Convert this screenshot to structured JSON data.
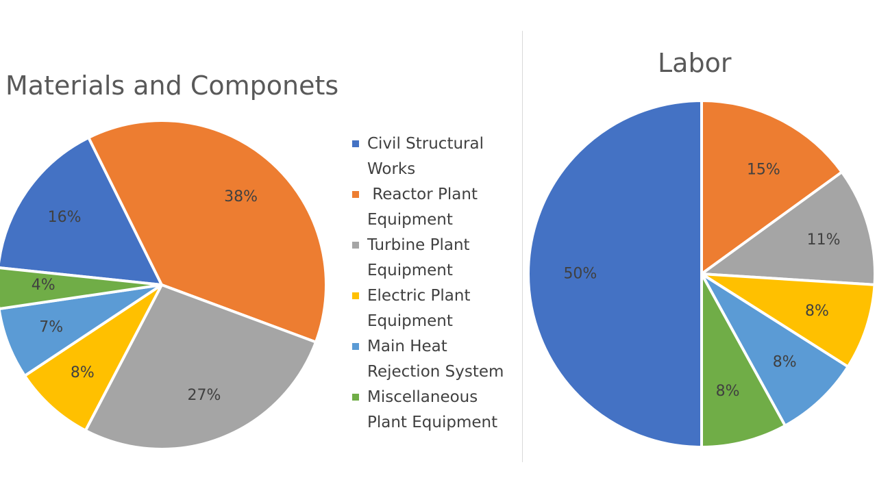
{
  "colors": {
    "civil": "#4472C4",
    "reactor": "#ED7D31",
    "turbine": "#A5A5A5",
    "electric": "#FFC000",
    "heat": "#5B9BD5",
    "misc": "#70AD47"
  },
  "legend": [
    {
      "key": "civil",
      "label": "Civil Structural\nWorks"
    },
    {
      "key": "reactor",
      "label": " Reactor Plant\nEquipment"
    },
    {
      "key": "turbine",
      "label": "Turbine Plant\nEquipment"
    },
    {
      "key": "electric",
      "label": "Electric Plant\nEquipment"
    },
    {
      "key": "heat",
      "label": "Main Heat\nRejection System"
    },
    {
      "key": "misc",
      "label": "Miscellaneous\nPlant Equipment"
    }
  ],
  "chart_data": [
    {
      "type": "pie",
      "title": "Materials and Componets",
      "categories": [
        "Civil Structural Works",
        " Reactor Plant Equipment",
        "Turbine Plant Equipment",
        "Electric Plant Equipment",
        "Main Heat Rejection System",
        "Miscellaneous Plant Equipment"
      ],
      "keys": [
        "civil",
        "reactor",
        "turbine",
        "electric",
        "heat",
        "misc"
      ],
      "values": [
        16,
        38,
        27,
        8,
        7,
        4
      ],
      "labels": [
        "16%",
        "38%",
        "27%",
        "8%",
        "7%",
        "4%"
      ],
      "start_angle_deg": -84,
      "legend": "right"
    },
    {
      "type": "pie",
      "title": "Labor",
      "categories": [
        " Reactor Plant Equipment",
        "Turbine Plant Equipment",
        "Electric Plant Equipment",
        "Main Heat Rejection System",
        "Miscellaneous Plant Equipment",
        "Civil Structural Works"
      ],
      "keys": [
        "reactor",
        "turbine",
        "electric",
        "heat",
        "misc",
        "civil"
      ],
      "values": [
        15,
        11,
        8,
        8,
        8,
        50
      ],
      "labels": [
        "15%",
        "11%",
        "8%",
        "8%",
        "8%",
        "50%"
      ],
      "start_angle_deg": 0,
      "legend": "none"
    }
  ]
}
